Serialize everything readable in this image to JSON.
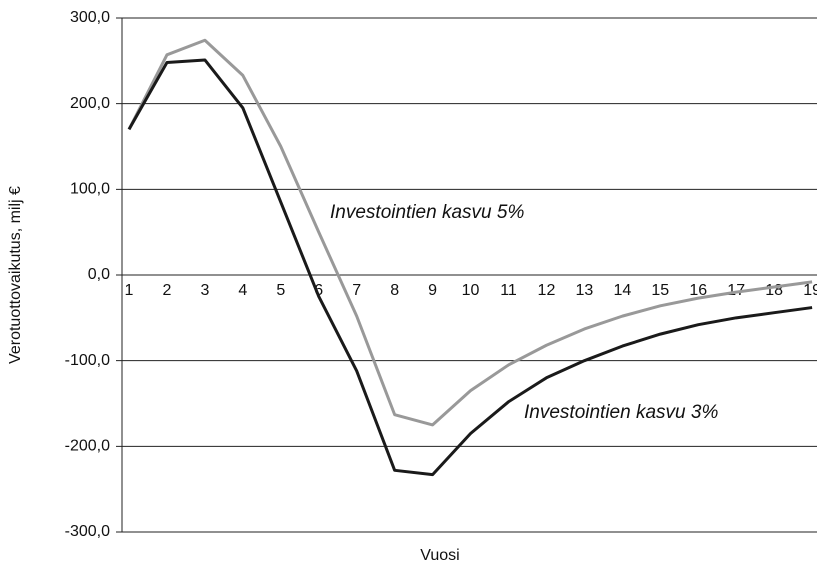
{
  "chart_data": {
    "type": "line",
    "xlabel": "Vuosi",
    "ylabel": "Verotuottovaikutus, milj €",
    "categories": [
      "1",
      "2",
      "3",
      "4",
      "5",
      "6",
      "7",
      "8",
      "9",
      "10",
      "11",
      "12",
      "13",
      "14",
      "15",
      "16",
      "17",
      "18",
      "19"
    ],
    "series": [
      {
        "name": "Investointien kasvu 5%",
        "color": "#999999",
        "values": [
          170,
          257,
          274,
          233,
          150,
          50,
          -48,
          -163,
          -175,
          -135,
          -105,
          -82,
          -63,
          -48,
          -36,
          -27,
          -20,
          -14,
          -8
        ]
      },
      {
        "name": "Investointien kasvu 3%",
        "color": "#1a1a1a",
        "values": [
          170,
          248,
          251,
          195,
          85,
          -25,
          -112,
          -228,
          -233,
          -185,
          -148,
          -120,
          -100,
          -83,
          -69,
          -58,
          -50,
          -44,
          -38
        ]
      }
    ],
    "ylim": [
      -300,
      300
    ],
    "yticks": [
      {
        "value": -300,
        "label": "-300,0"
      },
      {
        "value": -200,
        "label": "-200,0"
      },
      {
        "value": -100,
        "label": "-100,0"
      },
      {
        "value": 0,
        "label": "0,0"
      },
      {
        "value": 100,
        "label": "100,0"
      },
      {
        "value": 200,
        "label": "200,0"
      },
      {
        "value": 300,
        "label": "300,0"
      }
    ],
    "grid": true
  }
}
